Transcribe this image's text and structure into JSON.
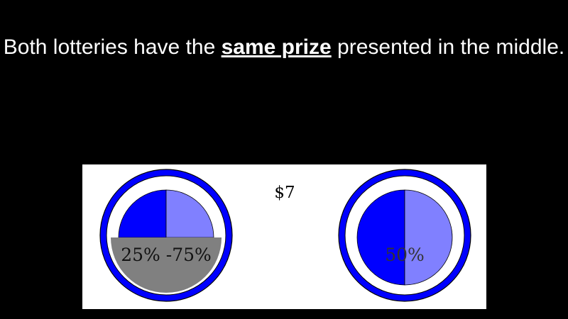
{
  "headline": {
    "part1": "Both lotteries have the ",
    "emphasis": "same prize",
    "part2": " presented in the middle."
  },
  "figure": {
    "prize_label": "$7",
    "left_lottery": {
      "probability_label": "25% -75%",
      "colors": {
        "ring": "#0000ff",
        "dark": "#0000ff",
        "light": "#8080ff",
        "mask": "#808080"
      }
    },
    "right_lottery": {
      "probability_label": "50%",
      "colors": {
        "ring": "#0000ff",
        "dark": "#0000ff",
        "light": "#8080ff"
      }
    }
  }
}
